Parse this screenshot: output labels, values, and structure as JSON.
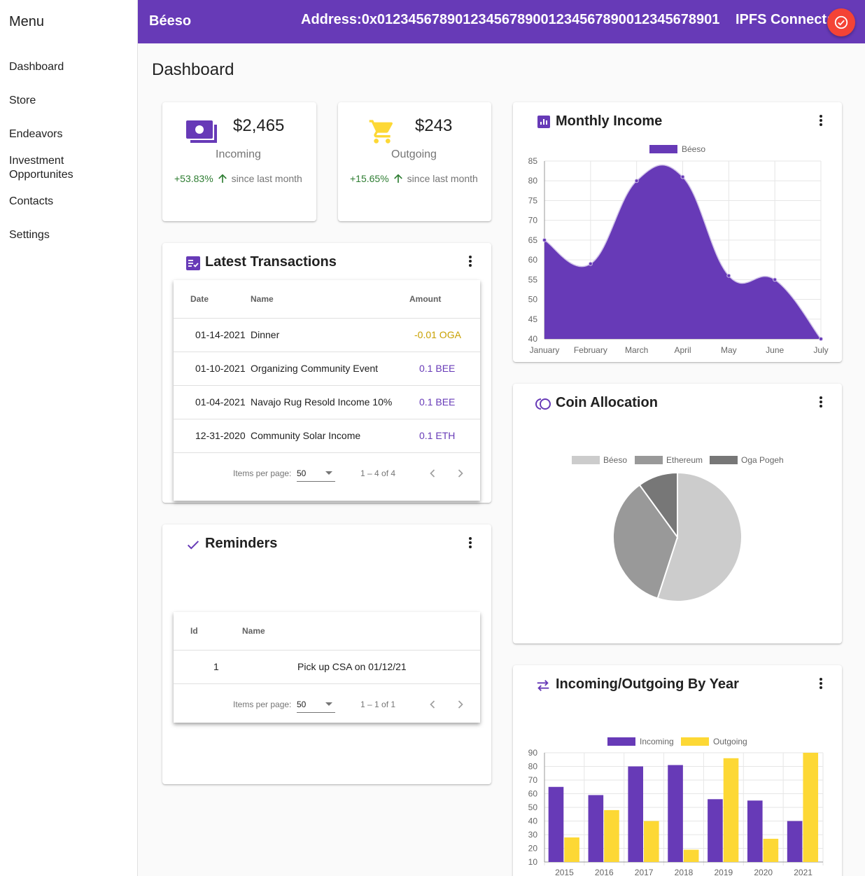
{
  "sidebar": {
    "title": "Menu",
    "items": [
      {
        "label": "Dashboard"
      },
      {
        "label": "Store"
      },
      {
        "label": "Endeavors"
      },
      {
        "label": "Investment Opportunites"
      },
      {
        "label": "Contacts"
      },
      {
        "label": "Settings"
      }
    ]
  },
  "topbar": {
    "brand": "Béeso",
    "address": "Address:0x0123456789012345678900123456789001234567890 1",
    "address_text": "Address:0x01234567890123456789001234567890012345678901",
    "ipfs_label": "IPFS Connect:",
    "ipfs_icon": "check-circle-icon",
    "ipfs_color": "#f44336"
  },
  "page": {
    "title": "Dashboard"
  },
  "stats": {
    "incoming": {
      "value": "$2,465",
      "label": "Incoming",
      "change": "+53.83%",
      "since": "since last month",
      "icon": "money-icon"
    },
    "outgoing": {
      "value": "$243",
      "label": "Outgoing",
      "change": "+15.65%",
      "since": "since last month",
      "icon": "cart-icon"
    }
  },
  "transactions": {
    "title": "Latest Transactions",
    "columns": {
      "date": "Date",
      "name": "Name",
      "amount": "Amount"
    },
    "rows": [
      {
        "date": "01-14-2021",
        "name": "Dinner",
        "amount": "-0.01 OGA"
      },
      {
        "date": "01-10-2021",
        "name": "Organizing Community Event",
        "amount": "0.1 BEE"
      },
      {
        "date": "01-04-2021",
        "name": "Navajo Rug Resold Income 10%",
        "amount": "0.1 BEE"
      },
      {
        "date": "12-31-2020",
        "name": "Community Solar Income",
        "amount": "0.1 ETH"
      }
    ],
    "paginator": {
      "label": "Items per page:",
      "page_size": "50",
      "range": "1 – 4 of 4"
    }
  },
  "reminders": {
    "title": "Reminders",
    "columns": {
      "id": "Id",
      "name": "Name"
    },
    "rows": [
      {
        "id": "1",
        "name": "Pick up CSA on 01/12/21"
      }
    ],
    "paginator": {
      "label": "Items per page:",
      "page_size": "50",
      "range": "1 – 1 of 1"
    }
  },
  "colors": {
    "primary": "#673ab7",
    "incoming": "#673ab7",
    "outgoing": "#fdd835",
    "negative": "#c8a000"
  },
  "monthly_income": {
    "title": "Monthly Income",
    "chart_data": {
      "type": "area",
      "title": "Monthly Income",
      "series": [
        {
          "name": "Béeso",
          "values": [
            65,
            59,
            80,
            81,
            56,
            55,
            40
          ]
        }
      ],
      "categories": [
        "January",
        "February",
        "March",
        "April",
        "May",
        "June",
        "July"
      ],
      "ylim": [
        40,
        85
      ],
      "yticks": [
        40,
        45,
        50,
        55,
        60,
        65,
        70,
        75,
        80,
        85
      ],
      "legend": "top"
    }
  },
  "coin_allocation": {
    "title": "Coin Allocation",
    "chart_data": {
      "type": "pie",
      "labels": [
        "Béeso",
        "Ethereum",
        "Oga Pogeh"
      ],
      "values": [
        55,
        35,
        10
      ],
      "colors": [
        "#cccccc",
        "#999999",
        "#777777"
      ],
      "legend": "top"
    }
  },
  "by_year": {
    "title": "Incoming/Outgoing By Year",
    "chart_data": {
      "type": "bar",
      "categories": [
        "2015",
        "2016",
        "2017",
        "2018",
        "2019",
        "2020",
        "2021"
      ],
      "series": [
        {
          "name": "Incoming",
          "values": [
            65,
            59,
            80,
            81,
            56,
            55,
            40
          ]
        },
        {
          "name": "Outgoing",
          "values": [
            28,
            48,
            40,
            19,
            86,
            27,
            90
          ]
        }
      ],
      "ylim": [
        10,
        90
      ],
      "yticks": [
        10,
        20,
        30,
        40,
        50,
        60,
        70,
        80,
        90
      ],
      "legend": "top"
    }
  }
}
